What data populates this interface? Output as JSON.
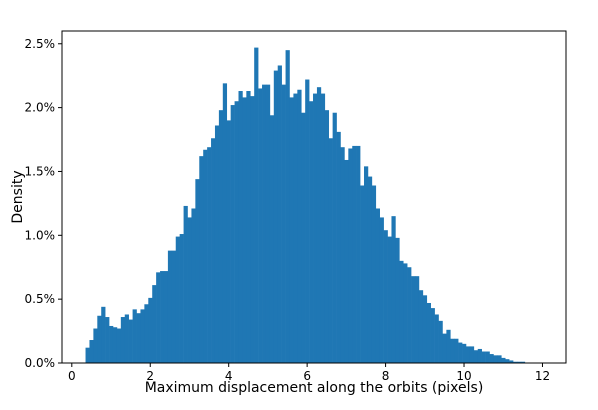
{
  "chart_data": {
    "type": "bar",
    "subtype": "histogram",
    "title": "",
    "xlabel": "Maximum displacement along the orbits (pixels)",
    "ylabel": "Density",
    "xlim": [
      -0.25,
      12.6
    ],
    "ylim": [
      0,
      0.026
    ],
    "x_ticks": [
      0,
      2,
      4,
      6,
      8,
      10,
      12
    ],
    "x_tick_labels": [
      "0",
      "2",
      "4",
      "6",
      "8",
      "10",
      "12"
    ],
    "y_ticks": [
      0,
      0.005,
      0.01,
      0.015,
      0.02,
      0.025
    ],
    "y_tick_labels": [
      "0.0%",
      "0.5%",
      "1.0%",
      "1.5%",
      "2.0%",
      "2.5%"
    ],
    "bar_color": "#1f77b4",
    "grid": false,
    "bin_start": 0.35,
    "bin_width": 0.1,
    "values": [
      0.0012,
      0.0018,
      0.0027,
      0.0037,
      0.0044,
      0.0036,
      0.0029,
      0.0028,
      0.0027,
      0.0036,
      0.0038,
      0.0034,
      0.0042,
      0.0039,
      0.0042,
      0.0046,
      0.0051,
      0.0061,
      0.0071,
      0.0072,
      0.0072,
      0.0088,
      0.0088,
      0.0099,
      0.0101,
      0.0123,
      0.0114,
      0.0121,
      0.0144,
      0.0162,
      0.0167,
      0.0169,
      0.0176,
      0.0186,
      0.0198,
      0.0219,
      0.019,
      0.0202,
      0.0205,
      0.0213,
      0.0208,
      0.0213,
      0.0209,
      0.0247,
      0.0215,
      0.0218,
      0.0218,
      0.0194,
      0.0229,
      0.0233,
      0.0218,
      0.0245,
      0.0208,
      0.0211,
      0.0214,
      0.0196,
      0.0222,
      0.0205,
      0.0211,
      0.0216,
      0.0211,
      0.0198,
      0.0176,
      0.0196,
      0.0181,
      0.0169,
      0.0159,
      0.0168,
      0.017,
      0.017,
      0.0139,
      0.0154,
      0.0146,
      0.0139,
      0.0121,
      0.0114,
      0.0104,
      0.0099,
      0.0115,
      0.0098,
      0.008,
      0.0078,
      0.0075,
      0.0068,
      0.0068,
      0.0057,
      0.0053,
      0.0047,
      0.0043,
      0.0038,
      0.0033,
      0.0023,
      0.0026,
      0.0019,
      0.0019,
      0.0016,
      0.0015,
      0.0013,
      0.0013,
      0.001,
      0.0011,
      0.0009,
      0.0009,
      0.0007,
      0.0006,
      0.0006,
      0.0004,
      0.0003,
      0.0002,
      0.0001,
      0.0001,
      0.0001
    ]
  }
}
